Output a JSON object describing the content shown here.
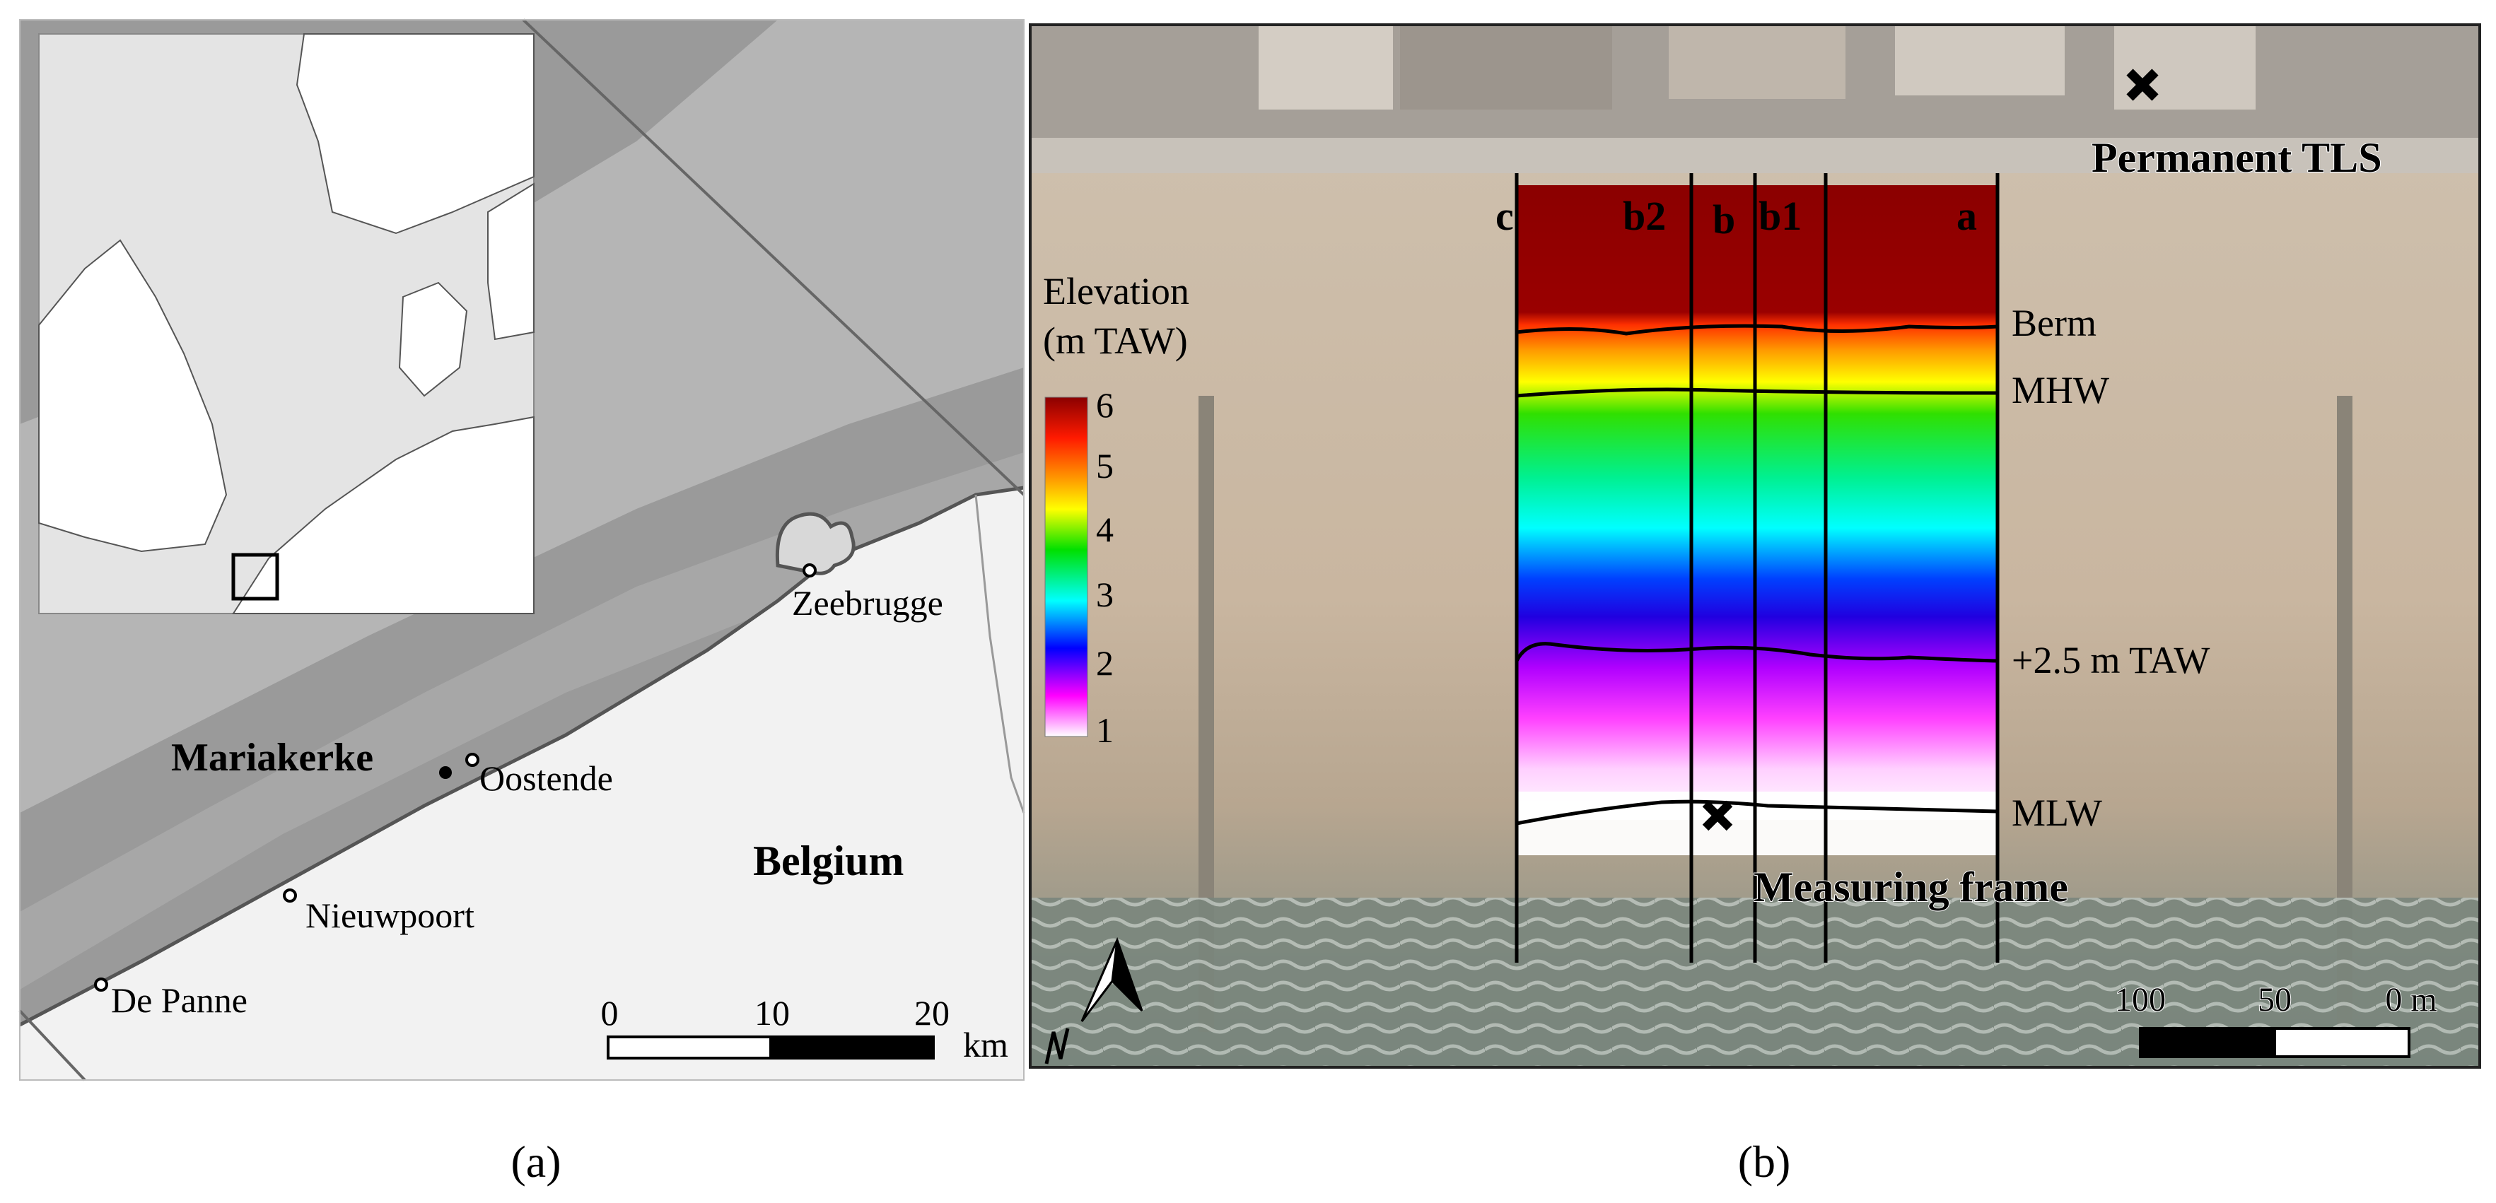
{
  "panel_a": {
    "caption": "(a)",
    "places": {
      "zeebrugge": "Zeebrugge",
      "mariakerke": "Mariakerke",
      "oostende": "Oostende",
      "nieuwpoort": "Nieuwpoort",
      "de_panne": "De Panne",
      "belgium": "Belgium"
    },
    "scale_bar": {
      "ticks": [
        "0",
        "10",
        "20"
      ],
      "unit": "km"
    }
  },
  "panel_b": {
    "caption": "(b)",
    "labels": {
      "permanent_tls": "Permanent TLS",
      "measuring_frame": "Measuring frame"
    },
    "transects": [
      "c",
      "b2",
      "b",
      "b1",
      "a"
    ],
    "contours": [
      "Berm",
      "MHW",
      "+2.5 m TAW",
      "MLW"
    ],
    "legend": {
      "title_line1": "Elevation",
      "title_line2": "(m TAW)",
      "ticks": [
        "6",
        "5",
        "4",
        "3",
        "2",
        "1"
      ],
      "colors": [
        "#8b0000",
        "#ff0000",
        "#ff8c00",
        "#ffff00",
        "#00e000",
        "#00ffff",
        "#0000ff",
        "#ff00ff",
        "#ffffff"
      ]
    },
    "scale_bar": {
      "ticks": [
        "100",
        "50",
        "0 m"
      ]
    }
  }
}
